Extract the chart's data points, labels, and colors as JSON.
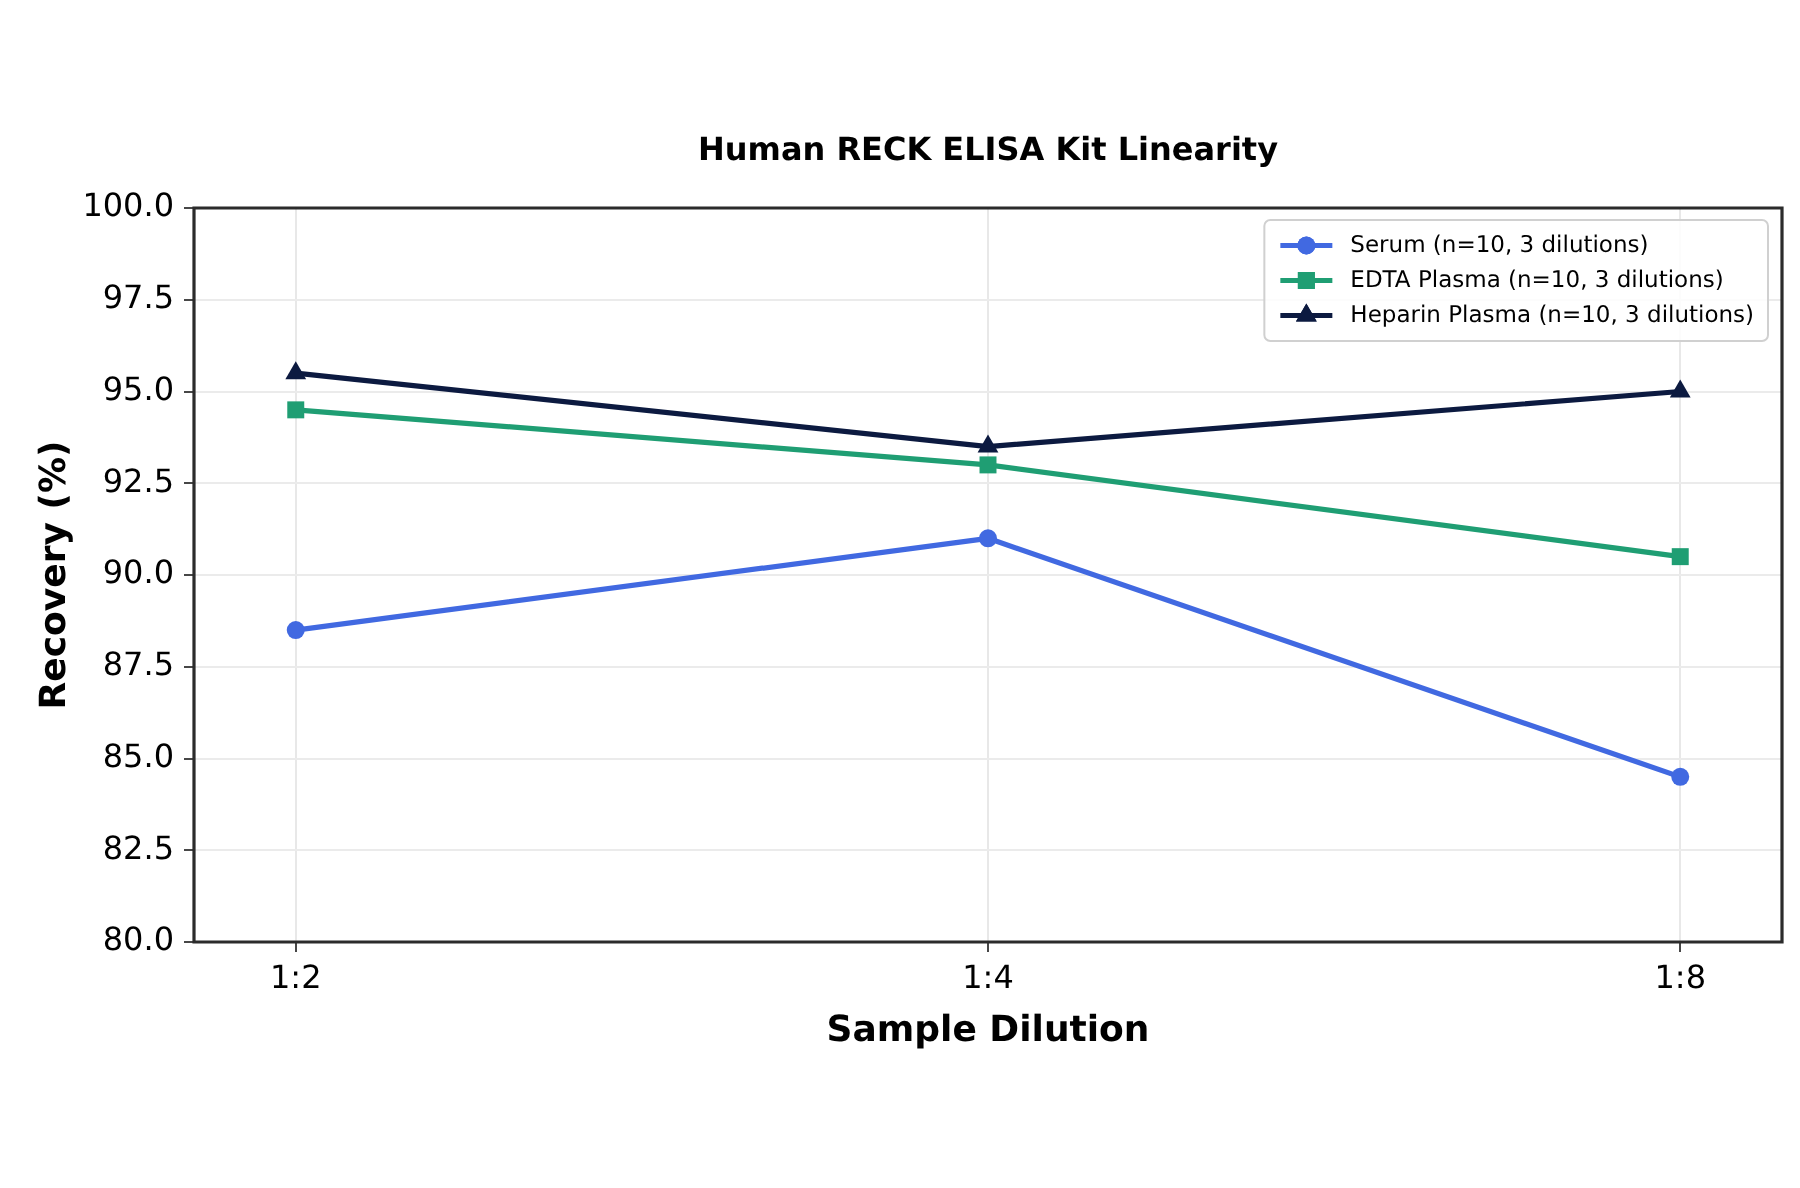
{
  "chart_data": {
    "type": "line",
    "title": "Human RECK ELISA Kit Linearity",
    "xlabel": "Sample Dilution",
    "ylabel": "Recovery (%)",
    "categories": [
      "1:2",
      "1:4",
      "1:8"
    ],
    "series": [
      {
        "name": "Serum (n=10, 3 dilutions)",
        "color": "#4169e1",
        "marker": "circle",
        "values": [
          88.5,
          91.0,
          84.5
        ]
      },
      {
        "name": "EDTA Plasma (n=10, 3 dilutions)",
        "color": "#1f9e73",
        "marker": "square",
        "values": [
          94.5,
          93.0,
          90.5
        ]
      },
      {
        "name": "Heparin Plasma (n=10, 3 dilutions)",
        "color": "#0c1a40",
        "marker": "triangle",
        "values": [
          95.5,
          93.5,
          95.0
        ]
      }
    ],
    "ylim": [
      80,
      100
    ],
    "yticks": [
      {
        "value": 80,
        "label": "80.0"
      },
      82.5,
      {
        "value": 85,
        "label": "85.0"
      },
      87.5,
      {
        "value": 90,
        "label": "90.0"
      },
      92.5,
      {
        "value": 95,
        "label": "95.0"
      },
      97.5,
      {
        "value": 100,
        "label": "100.0"
      }
    ],
    "grid": true,
    "legend": "top right",
    "line_style": "solid"
  }
}
